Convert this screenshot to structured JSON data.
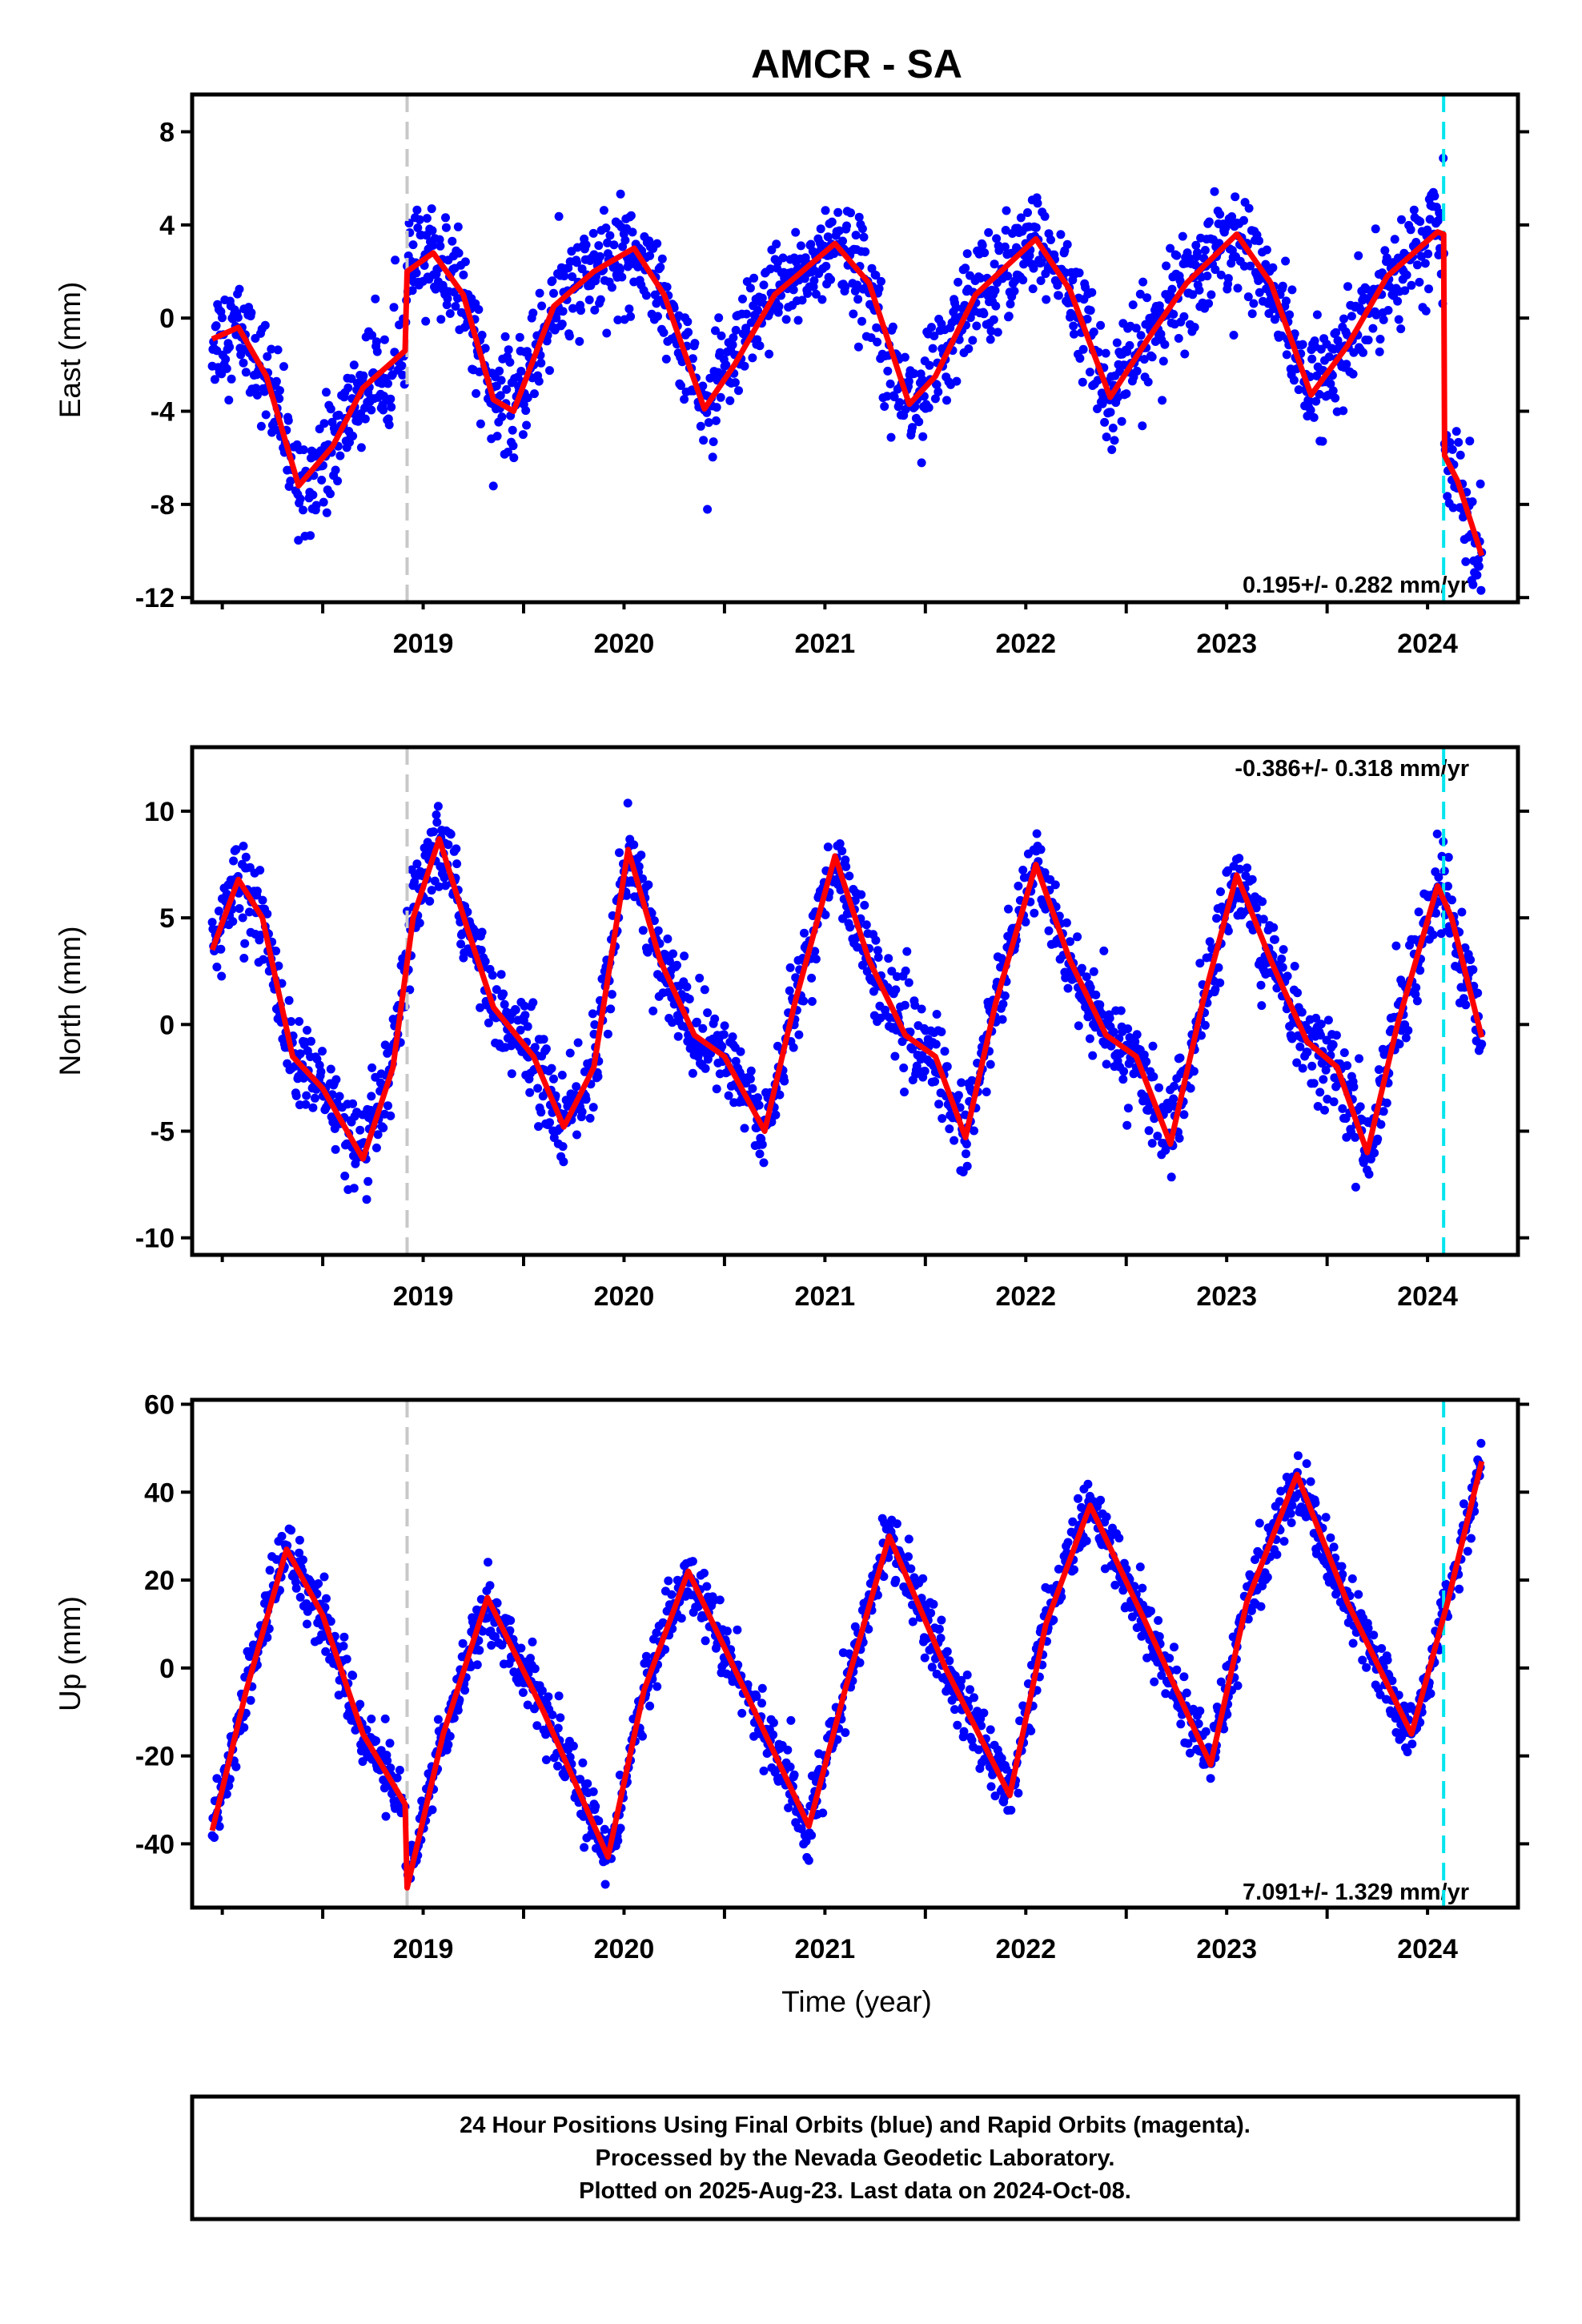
{
  "chart_data": {
    "type": "scatter",
    "title": "AMCR - SA",
    "xlabel": "Time (year)",
    "xlim": [
      2018.35,
      2024.95
    ],
    "x_ticks": [
      2019,
      2020,
      2021,
      2022,
      2023,
      2024
    ],
    "x_tick_labels": [
      "2019",
      "2020",
      "2021",
      "2022",
      "2023",
      "2024"
    ],
    "grid": false,
    "event_lines": [
      {
        "x": 2019.42,
        "color": "#c8c8c8",
        "style": "dashed"
      },
      {
        "x": 2024.58,
        "color": "#00e5ee",
        "style": "dashed"
      }
    ],
    "colors": {
      "final_orbits": "#0000ff",
      "model": "#ff0000"
    },
    "data_span": [
      2018.45,
      2024.77
    ],
    "panels": [
      {
        "name": "east",
        "ylabel": "East (mm)",
        "ylim": [
          -12.2,
          9.6
        ],
        "y_ticks": [
          8,
          4,
          0,
          -4,
          -8,
          -12
        ],
        "y_tick_labels": [
          "8",
          "4",
          "0",
          "-4",
          "-8",
          "-12"
        ],
        "rate_text": "0.195+/- 0.282 mm/yr",
        "rate_position": "bottom-right",
        "model_knots": [
          [
            2018.45,
            -0.9
          ],
          [
            2018.58,
            -0.4
          ],
          [
            2018.72,
            -2.5
          ],
          [
            2018.88,
            -7.2
          ],
          [
            2019.05,
            -5.5
          ],
          [
            2019.2,
            -3.0
          ],
          [
            2019.41,
            -1.4
          ],
          [
            2019.42,
            2.0
          ],
          [
            2019.55,
            2.8
          ],
          [
            2019.7,
            1.0
          ],
          [
            2019.85,
            -3.5
          ],
          [
            2019.95,
            -4.0
          ],
          [
            2020.15,
            0.5
          ],
          [
            2020.35,
            2.0
          ],
          [
            2020.55,
            3.0
          ],
          [
            2020.7,
            1.0
          ],
          [
            2020.9,
            -3.9
          ],
          [
            2021.05,
            -2.0
          ],
          [
            2021.25,
            1.0
          ],
          [
            2021.55,
            3.2
          ],
          [
            2021.72,
            1.5
          ],
          [
            2021.92,
            -3.7
          ],
          [
            2022.05,
            -2.5
          ],
          [
            2022.25,
            1.0
          ],
          [
            2022.55,
            3.4
          ],
          [
            2022.72,
            1.2
          ],
          [
            2022.92,
            -3.4
          ],
          [
            2023.1,
            -1.0
          ],
          [
            2023.3,
            1.5
          ],
          [
            2023.55,
            3.6
          ],
          [
            2023.72,
            1.5
          ],
          [
            2023.92,
            -3.3
          ],
          [
            2024.1,
            -1.2
          ],
          [
            2024.3,
            1.8
          ],
          [
            2024.55,
            3.7
          ],
          [
            2024.58,
            3.6
          ],
          [
            2024.585,
            -5.9
          ],
          [
            2024.65,
            -7.0
          ],
          [
            2024.77,
            -10.2
          ]
        ],
        "scatter_sigma": 1.4
      },
      {
        "name": "north",
        "ylabel": "North (mm)",
        "ylim": [
          -10.8,
          13.0
        ],
        "y_ticks": [
          10,
          5,
          0,
          -5,
          -10
        ],
        "y_tick_labels": [
          "10",
          "5",
          "0",
          "-5",
          "-10"
        ],
        "rate_text": "-0.386+/- 0.318 mm/yr",
        "rate_position": "top-right",
        "model_knots": [
          [
            2018.45,
            3.5
          ],
          [
            2018.58,
            6.8
          ],
          [
            2018.7,
            5.0
          ],
          [
            2018.85,
            -1.5
          ],
          [
            2019.0,
            -3.0
          ],
          [
            2019.2,
            -6.3
          ],
          [
            2019.35,
            -2.0
          ],
          [
            2019.45,
            5.0
          ],
          [
            2019.58,
            8.7
          ],
          [
            2019.72,
            4.5
          ],
          [
            2019.85,
            0.8
          ],
          [
            2020.05,
            -1.5
          ],
          [
            2020.2,
            -4.8
          ],
          [
            2020.35,
            -2.0
          ],
          [
            2020.52,
            8.2
          ],
          [
            2020.68,
            3.0
          ],
          [
            2020.85,
            -0.5
          ],
          [
            2021.0,
            -1.5
          ],
          [
            2021.2,
            -5.0
          ],
          [
            2021.35,
            1.0
          ],
          [
            2021.55,
            7.9
          ],
          [
            2021.72,
            3.0
          ],
          [
            2021.9,
            -0.5
          ],
          [
            2022.05,
            -1.5
          ],
          [
            2022.2,
            -5.3
          ],
          [
            2022.35,
            1.0
          ],
          [
            2022.55,
            7.5
          ],
          [
            2022.72,
            3.0
          ],
          [
            2022.9,
            -0.5
          ],
          [
            2023.05,
            -1.5
          ],
          [
            2023.22,
            -5.6
          ],
          [
            2023.38,
            1.0
          ],
          [
            2023.55,
            7.0
          ],
          [
            2023.72,
            3.0
          ],
          [
            2023.9,
            -0.8
          ],
          [
            2024.05,
            -2.0
          ],
          [
            2024.2,
            -6.0
          ],
          [
            2024.35,
            0.0
          ],
          [
            2024.55,
            6.5
          ],
          [
            2024.62,
            5.0
          ],
          [
            2024.77,
            -0.6
          ]
        ],
        "scatter_sigma": 1.3
      },
      {
        "name": "up",
        "ylabel": "Up (mm)",
        "ylim": [
          -54.5,
          61.0
        ],
        "y_ticks": [
          60,
          40,
          20,
          0,
          -20,
          -40
        ],
        "y_tick_labels": [
          "60",
          "40",
          "20",
          "0",
          "-20",
          "-40"
        ],
        "rate_text": "7.091+/- 1.329 mm/yr",
        "rate_position": "bottom-right",
        "model_knots": [
          [
            2018.45,
            -37
          ],
          [
            2018.62,
            -5
          ],
          [
            2018.82,
            27
          ],
          [
            2019.0,
            12
          ],
          [
            2019.2,
            -15
          ],
          [
            2019.41,
            -31
          ],
          [
            2019.42,
            -50
          ],
          [
            2019.6,
            -15
          ],
          [
            2019.82,
            16
          ],
          [
            2020.1,
            -10
          ],
          [
            2020.42,
            -43
          ],
          [
            2020.6,
            -5
          ],
          [
            2020.82,
            22
          ],
          [
            2021.1,
            -5
          ],
          [
            2021.42,
            -36
          ],
          [
            2021.6,
            -5
          ],
          [
            2021.82,
            30
          ],
          [
            2022.1,
            0
          ],
          [
            2022.42,
            -29
          ],
          [
            2022.6,
            10
          ],
          [
            2022.82,
            37
          ],
          [
            2023.1,
            10
          ],
          [
            2023.42,
            -22
          ],
          [
            2023.6,
            15
          ],
          [
            2023.85,
            44
          ],
          [
            2024.1,
            15
          ],
          [
            2024.42,
            -15
          ],
          [
            2024.6,
            15
          ],
          [
            2024.77,
            47
          ]
        ],
        "scatter_sigma": 4.5
      }
    ]
  },
  "footer": {
    "line1": "24 Hour Positions Using Final Orbits (blue) and Rapid Orbits (magenta).",
    "line2": "Processed by the Nevada Geodetic Laboratory.",
    "line3": "Plotted on 2025-Aug-23. Last data on 2024-Oct-08."
  }
}
